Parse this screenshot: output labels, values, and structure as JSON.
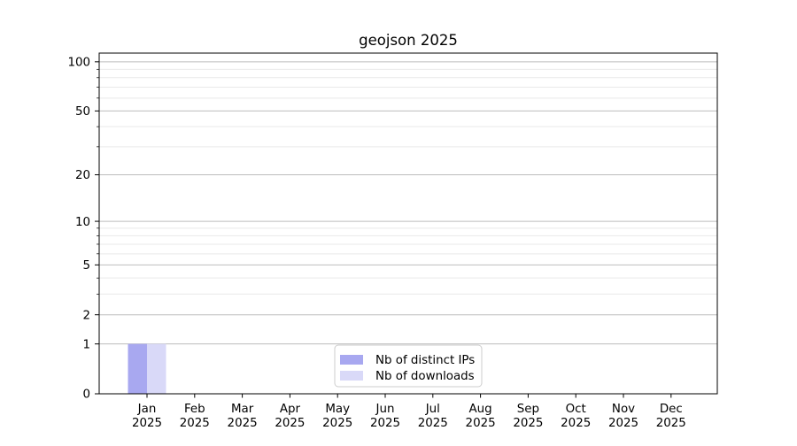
{
  "figure": {
    "title": "geojson 2025"
  },
  "chart_data": {
    "type": "bar",
    "title": "geojson 2025",
    "categories": [
      "Jan",
      "Feb",
      "Mar",
      "Apr",
      "May",
      "Jun",
      "Jul",
      "Aug",
      "Sep",
      "Oct",
      "Nov",
      "Dec"
    ],
    "category_year": "2025",
    "series": [
      {
        "name": "Nb of distinct IPs",
        "color": "#a8a8f0",
        "values": [
          1,
          0,
          0,
          0,
          0,
          0,
          0,
          0,
          0,
          0,
          0,
          0
        ]
      },
      {
        "name": "Nb of downloads",
        "color": "#d9d9f8",
        "values": [
          1,
          0,
          0,
          0,
          0,
          0,
          0,
          0,
          0,
          0,
          0,
          0
        ]
      }
    ],
    "xlabel": "",
    "ylabel": "",
    "yscale": "log1p",
    "ylim": [
      0,
      113
    ],
    "yticks": [
      0,
      1,
      2,
      5,
      10,
      20,
      50,
      100
    ],
    "minor_yticks": [
      3,
      4,
      6,
      7,
      8,
      9,
      30,
      40,
      60,
      70,
      80,
      90
    ],
    "grid": "both",
    "legend_position": "lower center",
    "colors": {
      "axis": "#000000",
      "major_grid": "#bdbdbd",
      "minor_grid": "#e9e9e9",
      "legend_border": "#cccccc",
      "background": "#ffffff"
    }
  }
}
